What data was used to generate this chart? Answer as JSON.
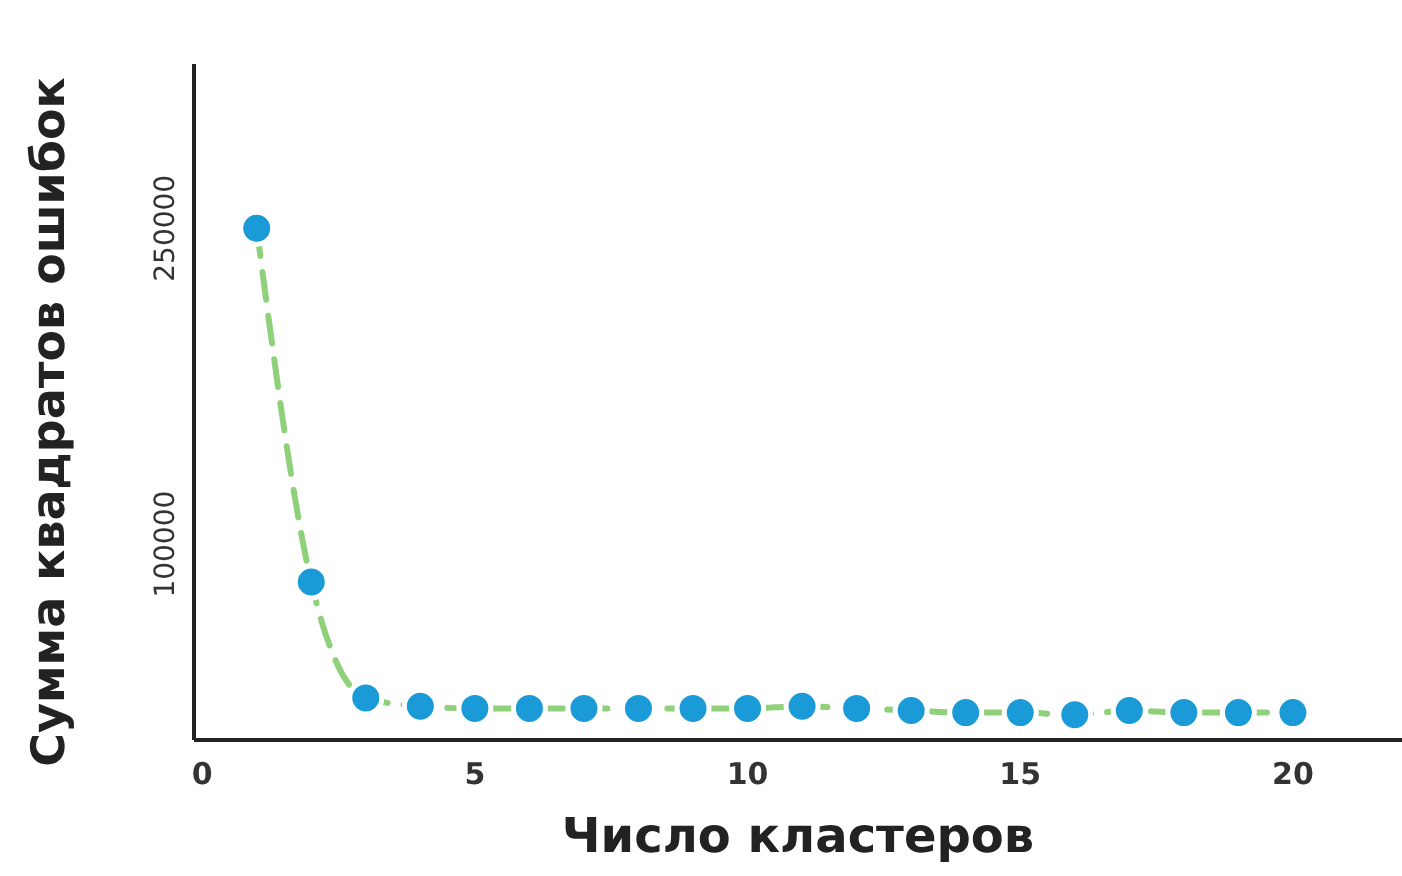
{
  "chart_data": {
    "type": "line",
    "xlabel": "Число кластеров",
    "ylabel": "Сумма квадратов ошибок",
    "x": [
      1,
      2,
      3,
      4,
      5,
      6,
      7,
      8,
      9,
      10,
      11,
      12,
      13,
      14,
      15,
      16,
      17,
      18,
      19,
      20
    ],
    "series": [
      {
        "color": "#8fd17a",
        "marker": "none",
        "values": [
          250000,
          82000,
          27000,
          23000,
          22000,
          22000,
          22000,
          22000,
          22000,
          22000,
          23000,
          22000,
          21000,
          20000,
          20000,
          19000,
          21000,
          20000,
          20000,
          20000
        ]
      },
      {
        "type": "scatter",
        "color": "#1a9ad6",
        "marker": "circle",
        "values": [
          250000,
          82000,
          27000,
          23000,
          22000,
          22000,
          22000,
          22000,
          22000,
          22000,
          23000,
          22000,
          21000,
          20000,
          20000,
          19000,
          21000,
          20000,
          20000,
          20000
        ]
      }
    ],
    "line_style": "dashed",
    "xlim": [
      -0.15,
      22
    ],
    "ylim": [
      7000,
      328000
    ],
    "xticks": [
      0,
      5,
      10,
      15,
      20
    ],
    "yticks": [
      100000,
      250000
    ],
    "grid": false
  }
}
